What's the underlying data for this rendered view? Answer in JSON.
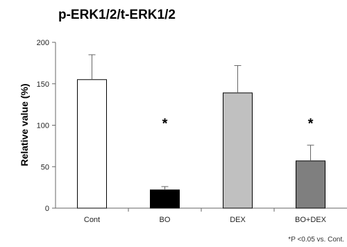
{
  "chart_data": {
    "type": "bar",
    "title": "p-ERK1/2/t-ERK1/2",
    "ylabel": "Relative value (%)",
    "xlabel": "",
    "ylim": [
      0,
      200
    ],
    "yticks": [
      0,
      50,
      100,
      150,
      200
    ],
    "categories": [
      "Cont",
      "BO",
      "DEX",
      "BO+DEX"
    ],
    "values": [
      155,
      22,
      139,
      57
    ],
    "errors": [
      30,
      4,
      33,
      19
    ],
    "colors": [
      "#ffffff",
      "#000000",
      "#c0c0c0",
      "#7f7f7f"
    ],
    "significance": [
      "",
      "*",
      "",
      "*"
    ],
    "footnote": "*P <0.05 vs. Cont.",
    "grid": false
  }
}
